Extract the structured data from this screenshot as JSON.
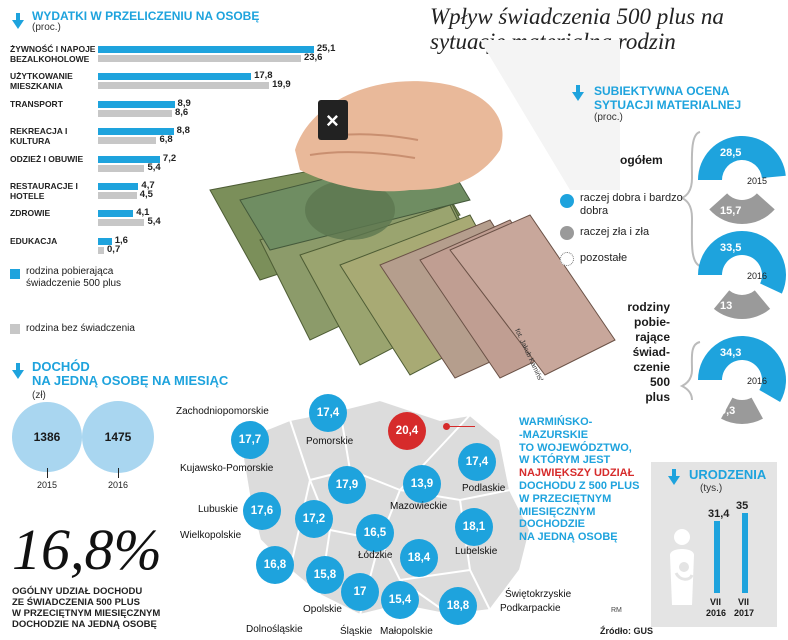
{
  "title": "Wpływ świadczenia 500 plus na sytuację materialną rodzin",
  "photo_credit": "fot. Jakub Kamiński/Eastnews",
  "expenses": {
    "title": "WYDATKI W PRZELICZENIU NA OSOBĘ",
    "unit": "(proc.)",
    "legend_blue": "rodzina pobierająca świadczenie 500 plus",
    "legend_gray": "rodzina bez świadczenia"
  },
  "income": {
    "title_line1": "DOCHÓD",
    "title_line2": "NA JEDNĄ OSOBĘ NA MIESIĄC",
    "unit": "(zł)"
  },
  "assessment": {
    "title_line1": "SUBIEKTYWNA OCENA",
    "title_line2": "SYTUACJI MATERIALNEJ",
    "unit": "(proc.)",
    "group_all": "ogółem",
    "group_500_lines": [
      "rodziny",
      "pobie-",
      "rające",
      "świad-",
      "czenie",
      "500 plus"
    ],
    "legend": [
      "raczej dobra i bardzo dobra",
      "raczej zła i zła",
      "pozostałe"
    ]
  },
  "regions_note": {
    "lines": [
      "WARMIŃSKO-",
      "-MAZURSKIE",
      "TO WOJEWÓDZTWO,",
      "W KTÓRYM JEST"
    ],
    "highlight": "NAJWIĘKSZY UDZIAŁ",
    "lines2": [
      "DOCHODU Z 500 PLUS",
      "W PRZECIĘTNYM",
      "MIESIĘCZNYM",
      "DOCHODZIE",
      "NA JEDNĄ OSOBĘ"
    ]
  },
  "share": {
    "value": "16,8%",
    "desc_lines": [
      "OGÓLNY UDZIAŁ DOCHODU",
      "ZE ŚWIADCZENIA 500 PLUS",
      "W PRZECIĘTNYM MIESIĘCZNYM",
      "DOCHODZIE NA JEDNĄ OSOBĘ"
    ]
  },
  "births": {
    "title": "URODZENIA",
    "unit": "(tys.)"
  },
  "footer": {
    "source": "Źródło: GUS",
    "author": "RM"
  },
  "colors": {
    "blue": "#1ea3dd",
    "gray": "#c7c7c7",
    "red": "#d62b2b",
    "dark_gray": "#9a9a9a"
  },
  "chart_data": [
    {
      "type": "bar",
      "title": "WYDATKI W PRZELICZENIU NA OSOBĘ",
      "unit": "(proc.)",
      "categories": [
        "ŻYWNOŚĆ I NAPOJE BEZALKOHOLOWE",
        "UŻYTKOWANIE MIESZKANIA",
        "TRANSPORT",
        "REKREACJA I KULTURA",
        "ODZIEŻ I OBUWIE",
        "RESTAURACJE I HOTELE",
        "ZDROWIE",
        "EDUKACJA"
      ],
      "series": [
        {
          "name": "rodzina pobierająca świadczenie 500 plus",
          "values": [
            "25,1",
            "17,8",
            "8,9",
            "8,8",
            "7,2",
            "4,7",
            "4,1",
            "1,6"
          ]
        },
        {
          "name": "rodzina bez świadczenia",
          "values": [
            "23,6",
            "19,9",
            "8,6",
            "6,8",
            "5,4",
            "4,5",
            "5,4",
            "0,7"
          ]
        }
      ]
    },
    {
      "type": "bubble",
      "title": "DOCHÓD NA JEDNĄ OSOBĘ NA MIESIĄC",
      "unit": "(zł)",
      "categories": [
        "2015",
        "2016"
      ],
      "values": [
        "1386",
        "1475"
      ]
    },
    {
      "type": "pie",
      "title": "SUBIEKTYWNA OCENA SYTUACJI MATERIALNEJ",
      "unit": "(proc.)",
      "groups": [
        {
          "name": "ogółem",
          "year": "2015",
          "good": "28,5",
          "bad": "15,7"
        },
        {
          "name": "ogółem",
          "year": "2016",
          "good": "33,5",
          "bad": "13"
        },
        {
          "name": "rodziny pobierające świadczenie 500 plus",
          "year": "2016",
          "good": "34,3",
          "bad": "9,3"
        }
      ]
    },
    {
      "type": "map",
      "regions": [
        {
          "name": "Zachodniopomorskie",
          "value": "17,7"
        },
        {
          "name": "Pomorskie",
          "value": "17,4"
        },
        {
          "name": "Warmińsko-mazurskie",
          "value": "20,4"
        },
        {
          "name": "Podlaskie",
          "value": "17,4"
        },
        {
          "name": "Kujawsko-Pomorskie",
          "value": "17,9"
        },
        {
          "name": "Mazowieckie",
          "value": "13,9"
        },
        {
          "name": "Lubuskie",
          "value": "17,6"
        },
        {
          "name": "Wielkopolskie",
          "value": "17,2"
        },
        {
          "name": "Łódzkie",
          "value": "16,5"
        },
        {
          "name": "Lubelskie",
          "value": "18,1"
        },
        {
          "name": "Dolnośląskie",
          "value": "16,8"
        },
        {
          "name": "Opolskie",
          "value": "15,8"
        },
        {
          "name": "Śląskie",
          "value": "17"
        },
        {
          "name": "Świętokrzyskie",
          "value": "18,4"
        },
        {
          "name": "Małopolskie",
          "value": "15,4"
        },
        {
          "name": "Podkarpackie",
          "value": "18,8"
        }
      ]
    },
    {
      "type": "bar",
      "title": "URODZENIA",
      "unit": "(tys.)",
      "categories": [
        "VII 2016",
        "VII 2017"
      ],
      "values": [
        "31,4",
        "35"
      ]
    }
  ]
}
